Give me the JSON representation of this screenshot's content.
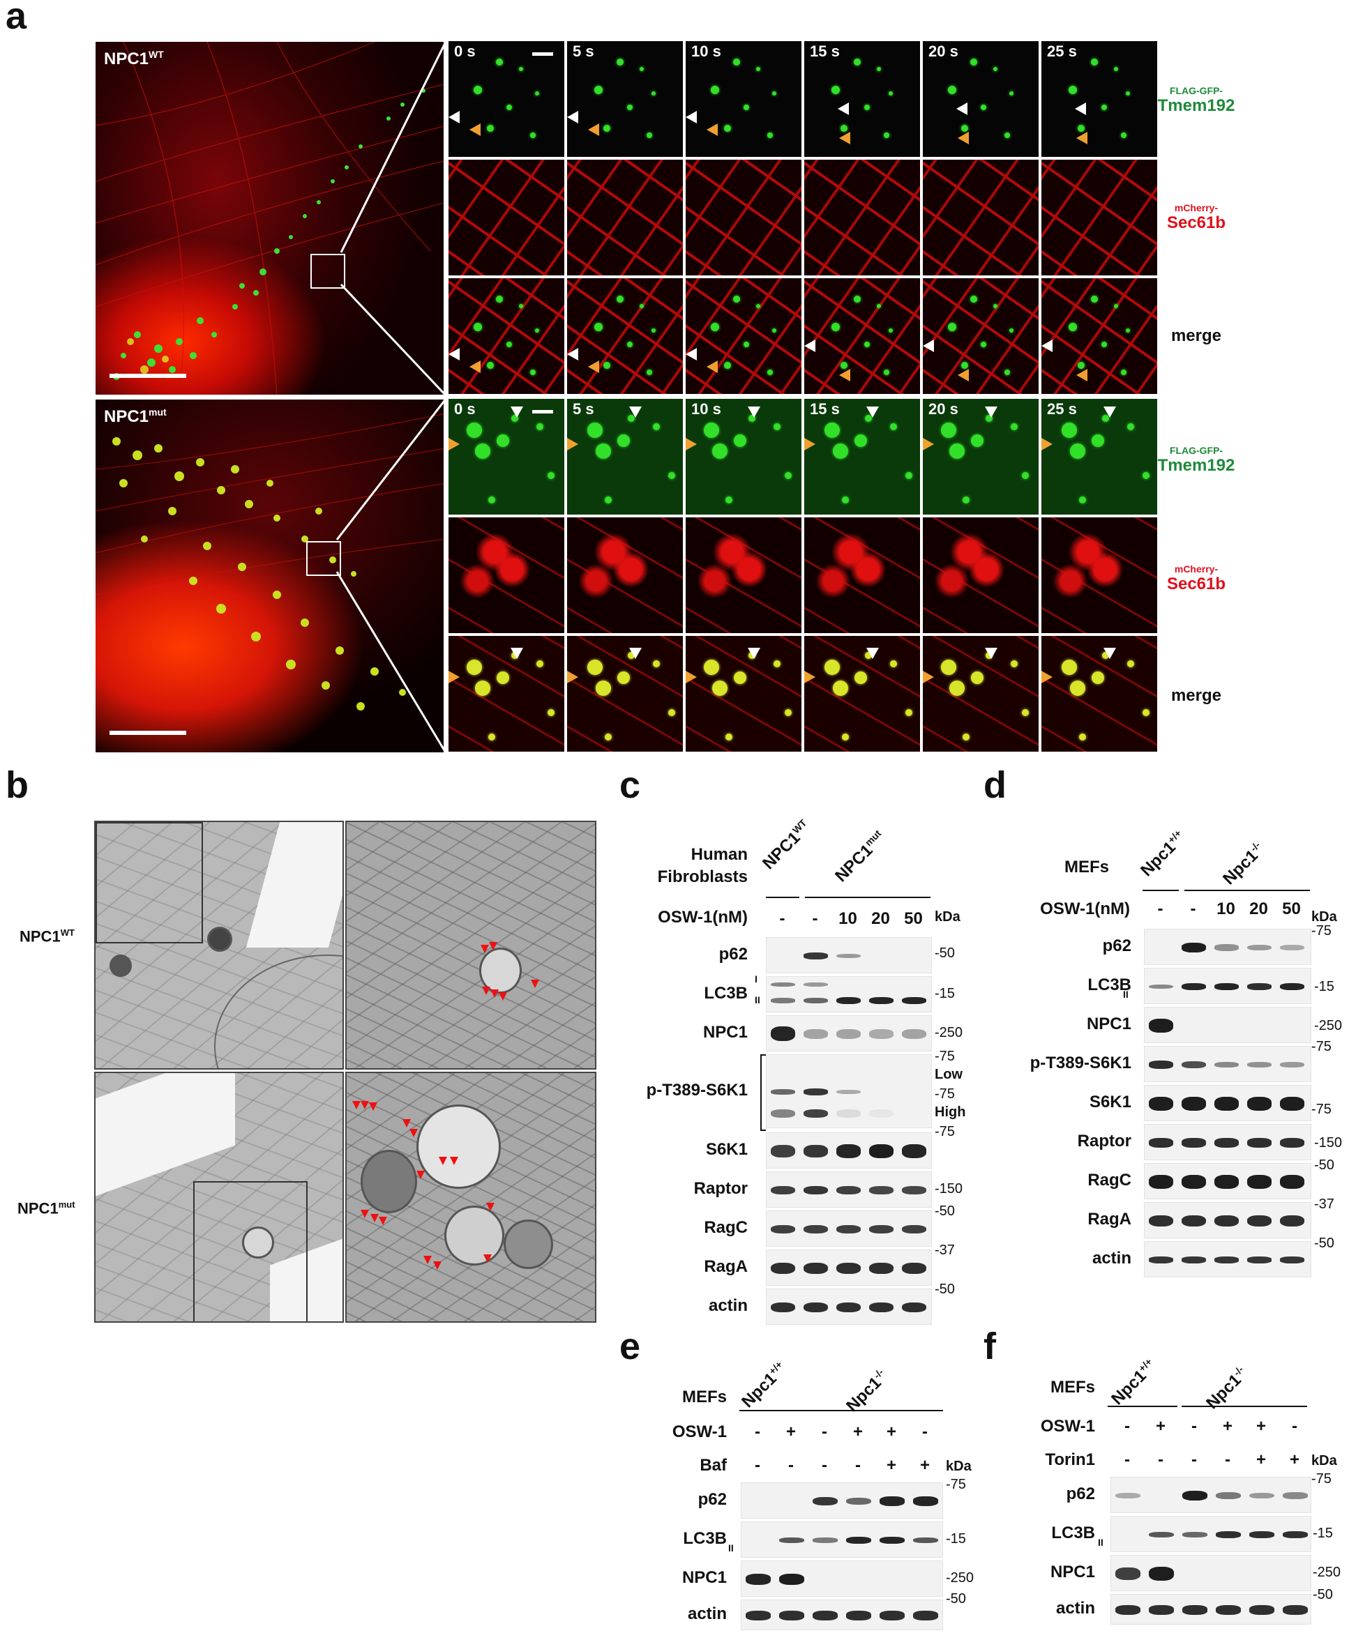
{
  "panel_letters": {
    "a": "a",
    "b": "b",
    "c": "c",
    "d": "d",
    "e": "e",
    "f": "f"
  },
  "panel_a": {
    "wt_label": "NPC1",
    "wt_sup": "WT",
    "mut_label": "NPC1",
    "mut_sup": "mut",
    "times": [
      "0 s",
      "5 s",
      "10 s",
      "15 s",
      "20 s",
      "25 s"
    ],
    "channel_tmem_small": "FLAG-GFP-",
    "channel_tmem_big": "Tmem192",
    "channel_sec_small": "mCherry-",
    "channel_sec_big": "Sec61b",
    "channel_merge": "merge"
  },
  "panel_b": {
    "wt_label": "NPC1",
    "wt_sup": "WT",
    "mut_label": "NPC1",
    "mut_sup": "mut"
  },
  "panel_c": {
    "header_line1": "Human",
    "header_line2": "Fibroblasts",
    "group_wt": "NPC1",
    "group_wt_sup": "WT",
    "group_mut": "NPC1",
    "group_mut_sup": "mut",
    "treatment_label": "OSW-1(nM)",
    "lanes": [
      "-",
      "-",
      "10",
      "20",
      "50"
    ],
    "kda": "kDa",
    "rows": [
      "p62",
      "LC3B",
      "NPC1",
      "p-T389-S6K1",
      "S6K1",
      "Raptor",
      "RagC",
      "RagA",
      "actin"
    ],
    "lc3_forms": [
      "I",
      "II"
    ],
    "exposures": [
      "Low",
      "High"
    ],
    "markers": [
      "-50",
      "-15",
      "-250",
      "-75",
      "-75",
      "-75",
      "-150",
      "-50",
      "-37",
      "-50"
    ]
  },
  "panel_d": {
    "header": "MEFs",
    "group_wt": "Npc1",
    "group_wt_sup": "+/+",
    "group_mut": "Npc1",
    "group_mut_sup": "-/-",
    "treatment_label": "OSW-1(nM)",
    "lanes": [
      "-",
      "-",
      "10",
      "20",
      "50"
    ],
    "kda": "kDa",
    "rows": [
      "p62",
      "LC3B",
      "NPC1",
      "p-T389-S6K1",
      "S6K1",
      "Raptor",
      "RagC",
      "RagA",
      "actin"
    ],
    "lc3_form": "II",
    "markers": [
      "-75",
      "-15",
      "-250",
      "-75",
      "-75",
      "-150",
      "-50",
      "-37",
      "-50"
    ]
  },
  "panel_e": {
    "header": "MEFs",
    "group_wt": "Npc1",
    "group_wt_sup": "+/+",
    "group_mut": "Npc1",
    "group_mut_sup": "-/-",
    "treatment1": "OSW-1",
    "treatment2": "Baf",
    "osw_lanes": [
      "-",
      "+",
      "-",
      "+",
      "+",
      "-"
    ],
    "baf_lanes": [
      "-",
      "-",
      "-",
      "-",
      "+",
      "+"
    ],
    "kda": "kDa",
    "rows": [
      "p62",
      "LC3B",
      "NPC1",
      "actin"
    ],
    "lc3_form": "II",
    "markers": [
      "-75",
      "-15",
      "-250",
      "-50"
    ]
  },
  "panel_f": {
    "header": "MEFs",
    "group_wt": "Npc1",
    "group_wt_sup": "+/+",
    "group_mut": "Npc1",
    "group_mut_sup": "-/-",
    "treatment1": "OSW-1",
    "treatment2": "Torin1",
    "osw_lanes": [
      "-",
      "+",
      "-",
      "+",
      "+",
      "-"
    ],
    "torin_lanes": [
      "-",
      "-",
      "-",
      "-",
      "+",
      "+"
    ],
    "kda": "kDa",
    "rows": [
      "p62",
      "LC3B",
      "NPC1",
      "actin"
    ],
    "lc3_form": "II",
    "markers": [
      "-75",
      "-15",
      "-250",
      "-50"
    ]
  }
}
